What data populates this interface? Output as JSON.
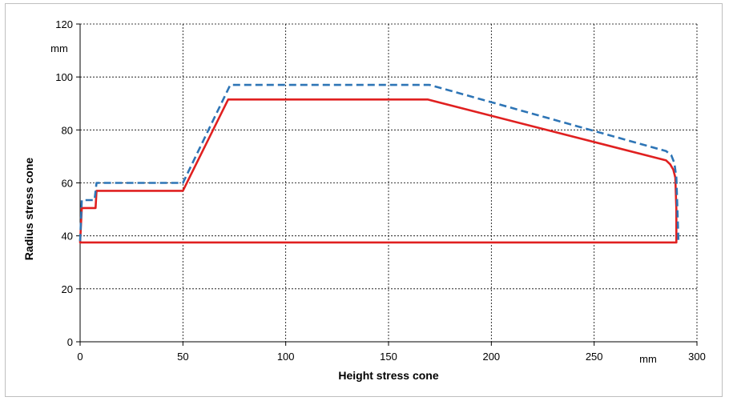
{
  "chart_data": {
    "type": "line",
    "title": "",
    "xlabel": "Height stress cone",
    "ylabel": "Radius stress cone",
    "x_unit": "mm",
    "y_unit": "mm",
    "xlim": [
      0,
      300
    ],
    "ylim": [
      0,
      120
    ],
    "x_ticks": [
      0,
      50,
      100,
      150,
      200,
      250,
      300
    ],
    "y_ticks": [
      0,
      20,
      40,
      60,
      80,
      100,
      120
    ],
    "x_tick_labels": [
      "0",
      "50",
      "100",
      "150",
      "200",
      "250",
      "300"
    ],
    "y_tick_labels": [
      "0",
      "20",
      "40",
      "60",
      "80",
      "100",
      "120"
    ],
    "grid": true,
    "legend": "none",
    "series": [
      {
        "style": "solid",
        "color": "#e02020",
        "x": [
          0,
          0.8,
          7.5,
          8,
          50,
          72,
          169,
          285,
          287,
          288.5,
          289.5,
          290,
          290,
          0
        ],
        "y": [
          37.5,
          50.5,
          50.5,
          57,
          57,
          91.5,
          91.5,
          68.5,
          67,
          65,
          62,
          50,
          37.5,
          37.5
        ]
      },
      {
        "style": "dashed",
        "color": "#2e75b6",
        "x": [
          0,
          0.8,
          7,
          8,
          50,
          73,
          170,
          285,
          287.5,
          289,
          290,
          290.5,
          291
        ],
        "y": [
          38,
          53.5,
          53.5,
          60,
          60,
          97,
          97,
          72,
          70.5,
          67.5,
          62,
          50,
          37.5
        ]
      }
    ]
  }
}
